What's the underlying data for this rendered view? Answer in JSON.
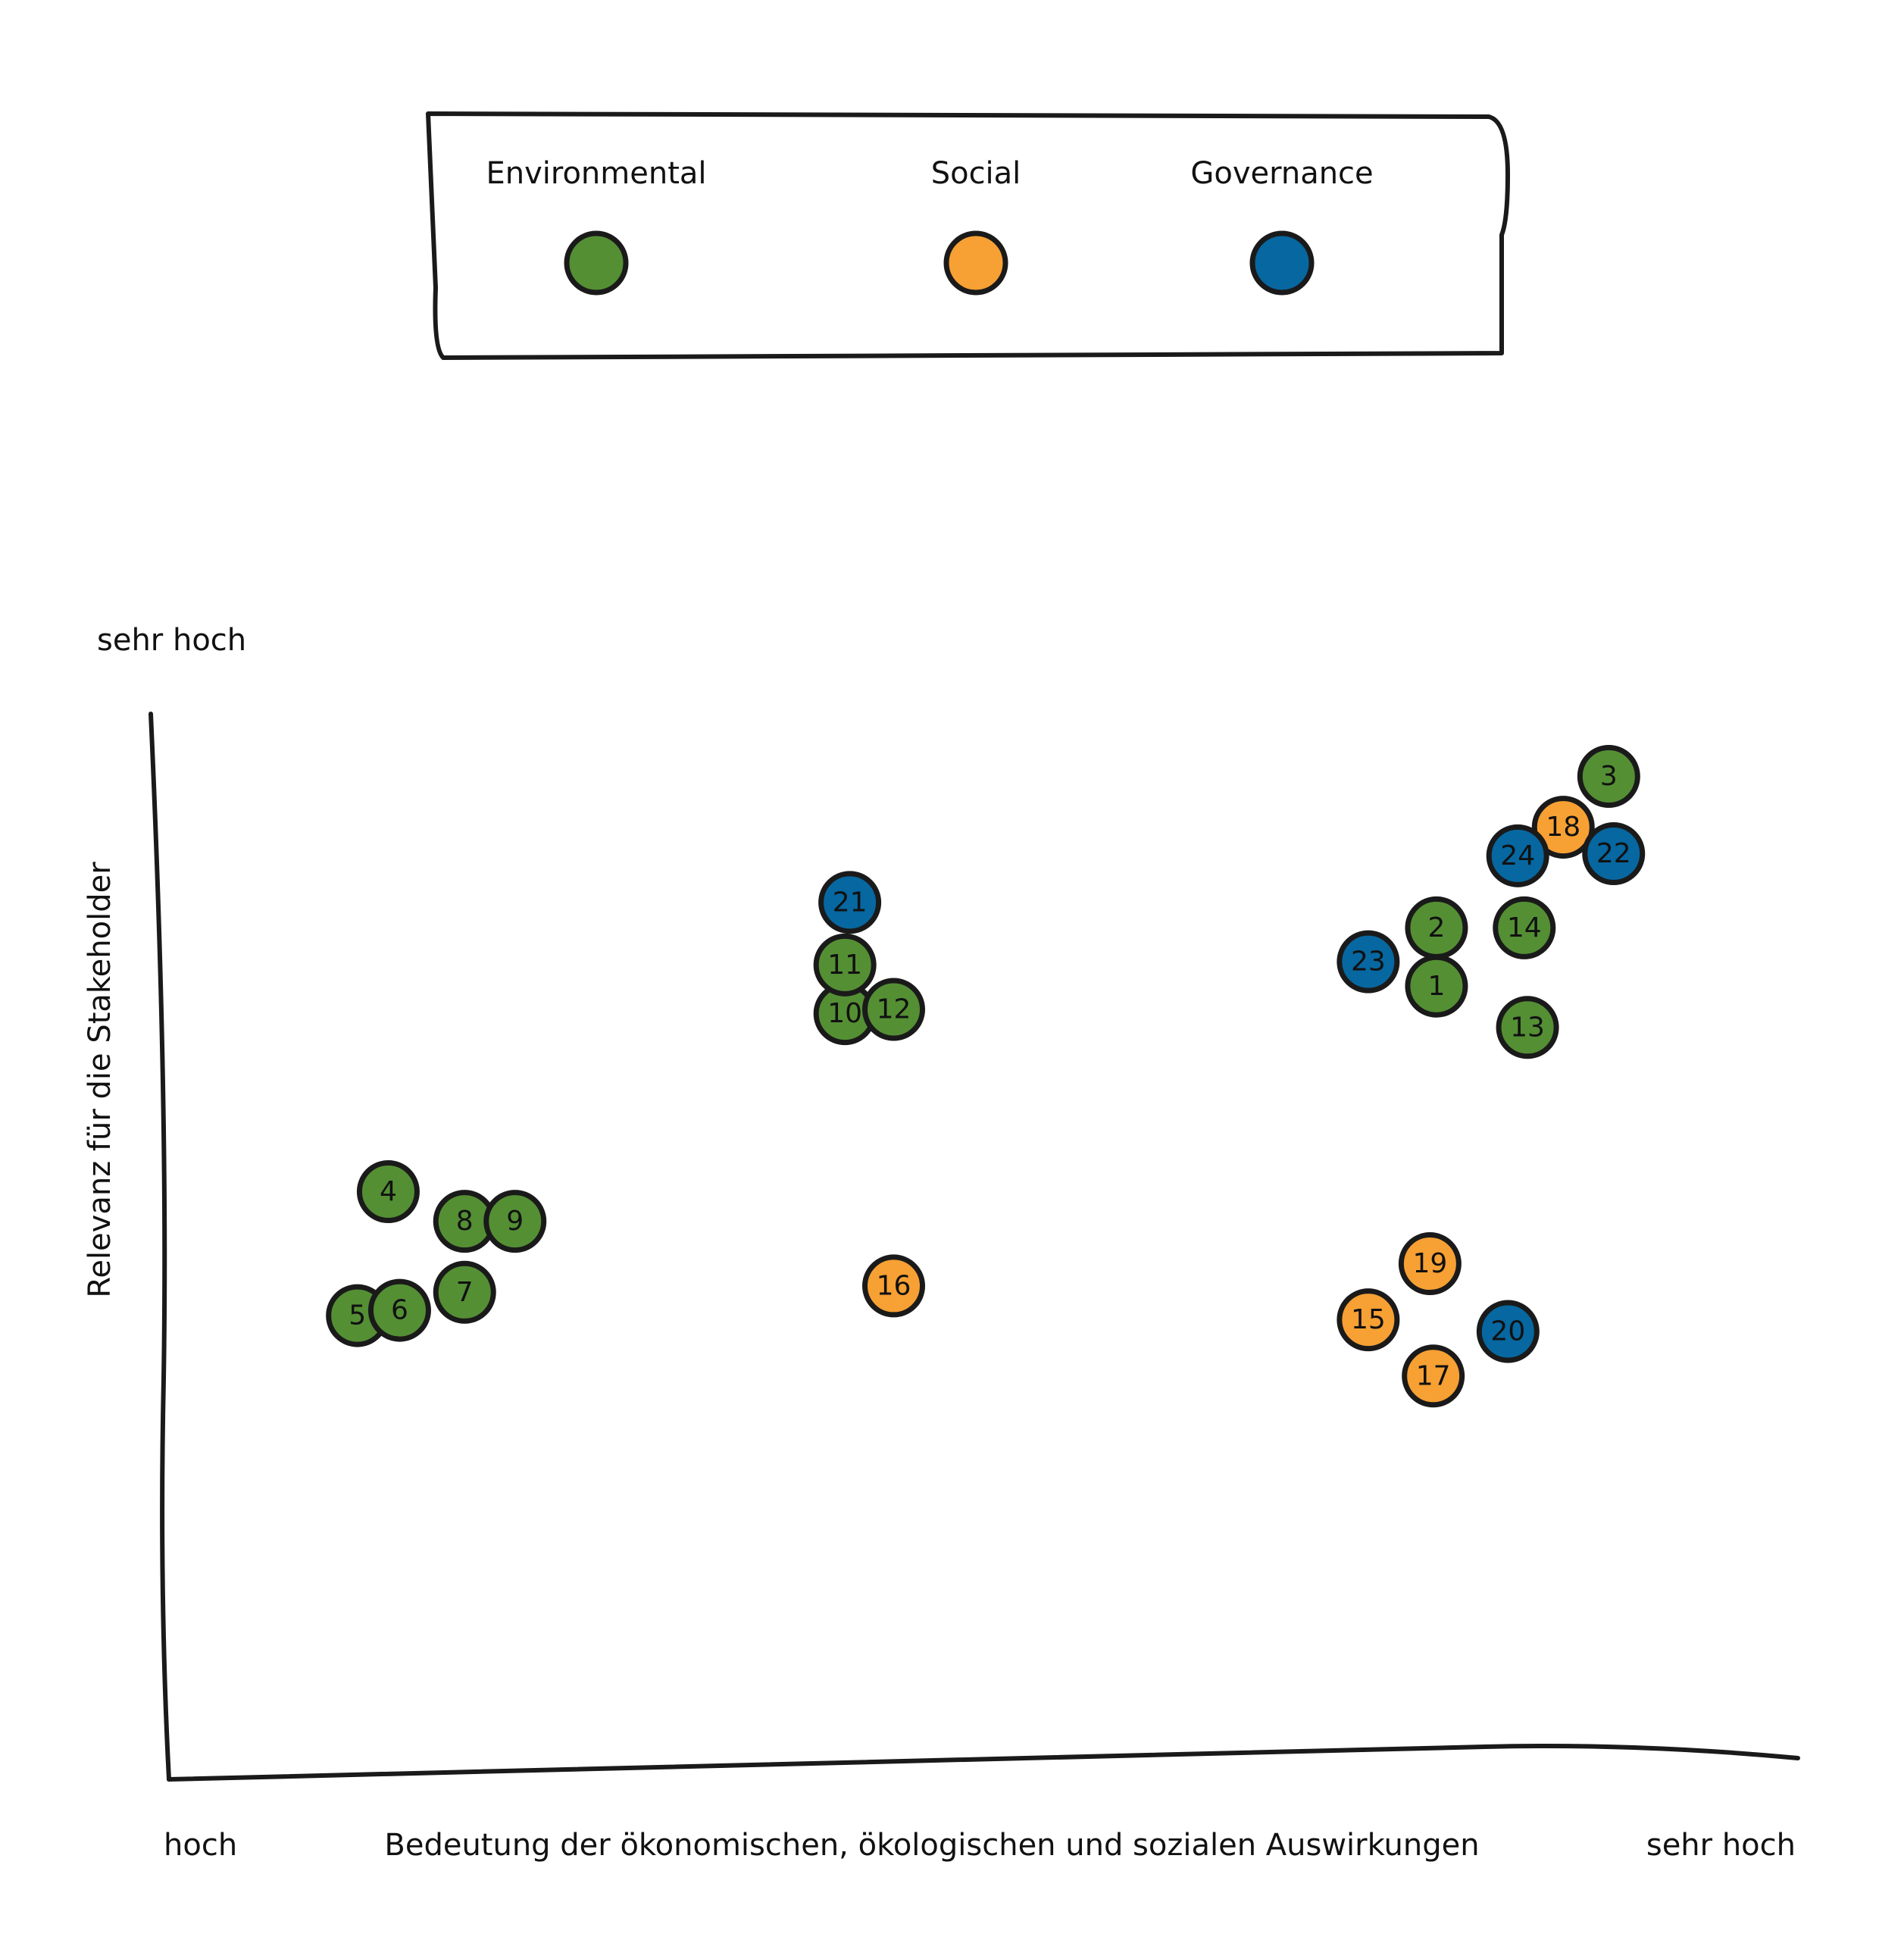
{
  "chart_data": {
    "type": "scatter",
    "legend": {
      "placement": "top",
      "entries": [
        {
          "key": "E",
          "label": "Environmental",
          "color": "#548f34"
        },
        {
          "key": "S",
          "label": "Social",
          "color": "#f7a033"
        },
        {
          "key": "G",
          "label": "Governance",
          "color": "#0767a0"
        }
      ]
    },
    "xlabel": "Bedeutung der ökonomischen, ökologischen und sozialen Auswirkungen",
    "ylabel": "Relevanz für die Stakeholder",
    "x_tick_labels": {
      "min": "hoch",
      "max": "sehr hoch"
    },
    "y_tick_labels": {
      "max": "sehr hoch"
    },
    "xlim": [
      0,
      100
    ],
    "ylim": [
      0,
      100
    ],
    "grid": false,
    "points": [
      {
        "label": "1",
        "category": "E",
        "x": 77.9,
        "y": 74.3
      },
      {
        "label": "2",
        "category": "E",
        "x": 77.9,
        "y": 79.8
      },
      {
        "label": "3",
        "category": "E",
        "x": 88.5,
        "y": 94.1
      },
      {
        "label": "4",
        "category": "E",
        "x": 13.4,
        "y": 54.9
      },
      {
        "label": "5",
        "category": "E",
        "x": 11.5,
        "y": 43.2
      },
      {
        "label": "6",
        "category": "E",
        "x": 14.1,
        "y": 43.7
      },
      {
        "label": "7",
        "category": "E",
        "x": 18.1,
        "y": 45.4
      },
      {
        "label": "8",
        "category": "E",
        "x": 18.1,
        "y": 52.1
      },
      {
        "label": "9",
        "category": "E",
        "x": 21.2,
        "y": 52.1
      },
      {
        "label": "10",
        "category": "E",
        "x": 41.5,
        "y": 71.7
      },
      {
        "label": "11",
        "category": "E",
        "x": 41.5,
        "y": 76.3
      },
      {
        "label": "12",
        "category": "E",
        "x": 44.5,
        "y": 72.1
      },
      {
        "label": "13",
        "category": "E",
        "x": 83.5,
        "y": 70.4
      },
      {
        "label": "14",
        "category": "E",
        "x": 83.3,
        "y": 79.8
      },
      {
        "label": "15",
        "category": "S",
        "x": 73.7,
        "y": 42.8
      },
      {
        "label": "16",
        "category": "S",
        "x": 44.5,
        "y": 46.0
      },
      {
        "label": "17",
        "category": "S",
        "x": 77.7,
        "y": 37.5
      },
      {
        "label": "18",
        "category": "S",
        "x": 85.7,
        "y": 89.3
      },
      {
        "label": "19",
        "category": "S",
        "x": 77.5,
        "y": 48.1
      },
      {
        "label": "20",
        "category": "G",
        "x": 82.3,
        "y": 41.7
      },
      {
        "label": "21",
        "category": "G",
        "x": 41.8,
        "y": 82.2
      },
      {
        "label": "22",
        "category": "G",
        "x": 88.8,
        "y": 86.8
      },
      {
        "label": "23",
        "category": "G",
        "x": 73.7,
        "y": 76.6
      },
      {
        "label": "24",
        "category": "G",
        "x": 82.9,
        "y": 86.6
      }
    ]
  }
}
